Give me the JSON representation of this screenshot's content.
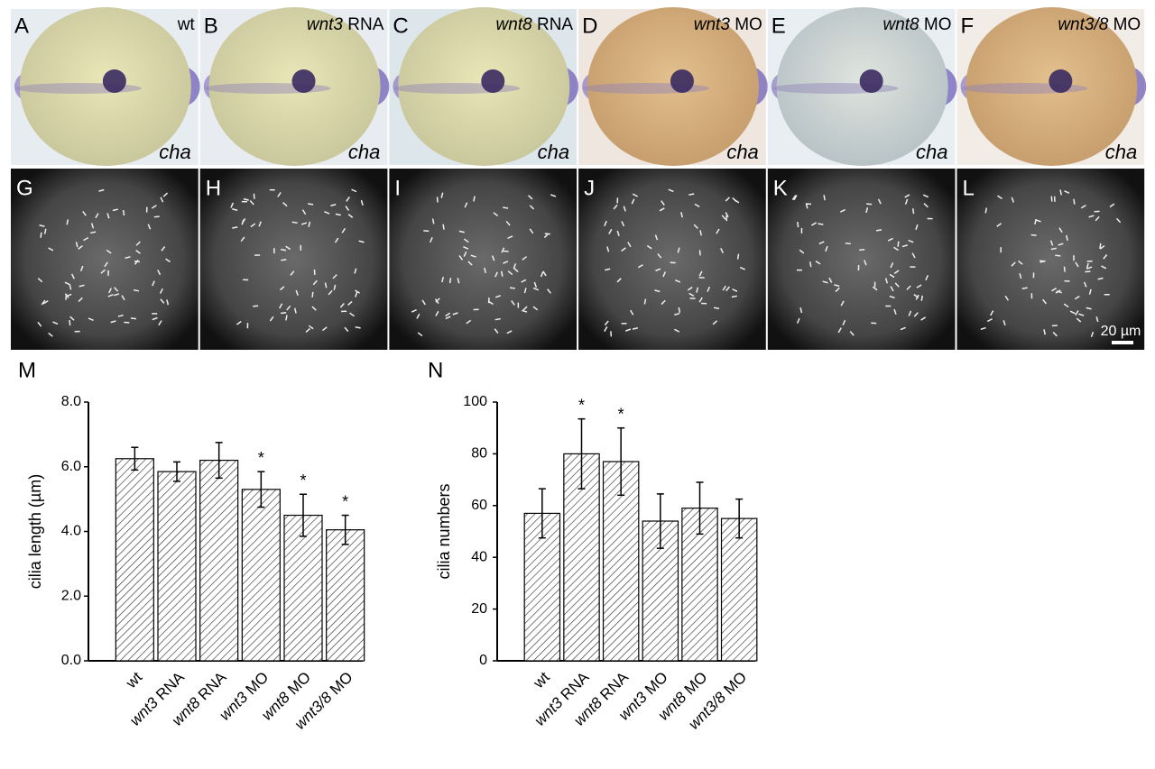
{
  "top_panels": [
    {
      "letter": "A",
      "label": "wt",
      "stain": "cha"
    },
    {
      "letter": "B",
      "gene": "wnt3",
      "treatment": "RNA",
      "stain": "cha"
    },
    {
      "letter": "C",
      "gene": "wnt8",
      "treatment": "RNA",
      "stain": "cha"
    },
    {
      "letter": "D",
      "gene": "wnt3",
      "treatment": "MO",
      "stain": "cha"
    },
    {
      "letter": "E",
      "gene": "wnt8",
      "treatment": "MO",
      "stain": "cha"
    },
    {
      "letter": "F",
      "gene": "wnt3/8",
      "treatment": "MO",
      "stain": "cha"
    }
  ],
  "fluorescence_panels": [
    {
      "letter": "G"
    },
    {
      "letter": "H"
    },
    {
      "letter": "I"
    },
    {
      "letter": "J"
    },
    {
      "letter": "K"
    },
    {
      "letter": "L"
    }
  ],
  "scale_bar": "20 µm",
  "chart_data": [
    {
      "type": "bar",
      "title": "M",
      "y_label": "cilia length (µm)",
      "categories": [
        "wt",
        "wnt3 RNA",
        "wnt8 RNA",
        "wnt3 MO",
        "wnt8 MO",
        "wnt3/8 MO"
      ],
      "values": [
        6.25,
        5.85,
        6.2,
        5.3,
        4.5,
        4.05
      ],
      "errors": [
        0.35,
        0.3,
        0.55,
        0.55,
        0.65,
        0.45
      ],
      "annotations": [
        {
          "index": 3,
          "text": "*"
        },
        {
          "index": 4,
          "text": "*"
        },
        {
          "index": 5,
          "text": "*"
        }
      ],
      "ylim": [
        0,
        8
      ],
      "yticks": [
        {
          "value": 0,
          "label": "0.0"
        },
        {
          "value": 2,
          "label": "2.0"
        },
        {
          "value": 4,
          "label": "4.0"
        },
        {
          "value": 6,
          "label": "6.0"
        },
        {
          "value": 8,
          "label": "8.0"
        }
      ]
    },
    {
      "type": "bar",
      "title": "N",
      "y_label": "cilia numbers",
      "categories": [
        "wt",
        "wnt3 RNA",
        "wnt8 RNA",
        "wnt3 MO",
        "wnt8 MO",
        "wnt3/8 MO"
      ],
      "values": [
        57,
        80,
        77,
        54,
        59,
        55
      ],
      "errors": [
        9.5,
        13.5,
        13,
        10.5,
        10,
        7.5
      ],
      "annotations": [
        {
          "index": 1,
          "text": "*"
        },
        {
          "index": 2,
          "text": "*"
        }
      ],
      "ylim": [
        0,
        100
      ],
      "yticks": [
        0,
        20,
        40,
        60,
        80,
        100
      ]
    }
  ]
}
